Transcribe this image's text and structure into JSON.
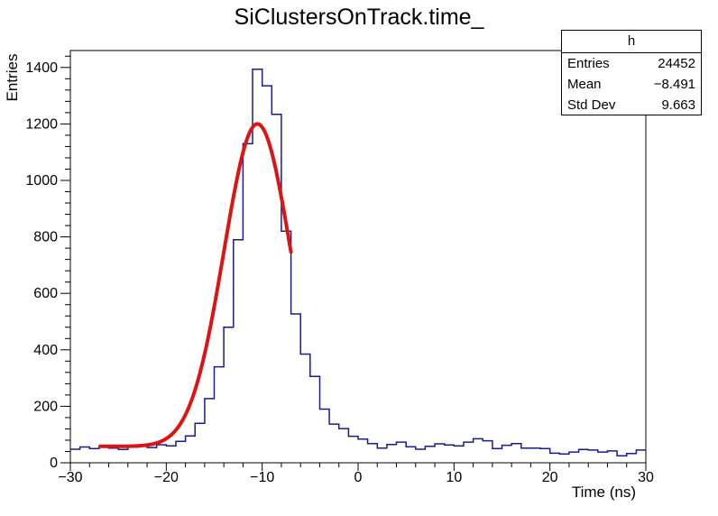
{
  "title": "SiClustersOnTrack.time_",
  "stats_box": {
    "header": "h",
    "rows": [
      {
        "label": "Entries",
        "value": "24452"
      },
      {
        "label": "Mean",
        "value": "−8.491"
      },
      {
        "label": "Std Dev",
        "value": "9.663"
      }
    ]
  },
  "chart_data": {
    "type": "bar",
    "subtype": "root-histogram-step",
    "title": "SiClustersOnTrack.time_",
    "xlabel": "Time (ns)",
    "ylabel": "Entries",
    "xlim": [
      -30,
      30
    ],
    "ylim": [
      0,
      1460
    ],
    "grid": false,
    "bin_start": -30,
    "bin_width": 1,
    "bins": [
      48,
      56,
      50,
      58,
      52,
      47,
      55,
      61,
      54,
      64,
      60,
      76,
      95,
      140,
      227,
      340,
      480,
      790,
      1130,
      1394,
      1335,
      1234,
      820,
      527,
      385,
      306,
      190,
      137,
      121,
      94,
      84,
      68,
      52,
      65,
      73,
      57,
      48,
      58,
      67,
      63,
      60,
      73,
      85,
      78,
      50,
      62,
      68,
      52,
      52,
      50,
      34,
      31,
      38,
      47,
      45,
      38,
      42,
      25,
      33,
      45
    ],
    "x_major_ticks": [
      -30,
      -20,
      -10,
      0,
      10,
      20,
      30
    ],
    "x_tick_labels": [
      "−30",
      "−20",
      "−10",
      "0",
      "10",
      "20",
      "30"
    ],
    "x_minor_step": 2,
    "y_major_ticks": [
      0,
      200,
      400,
      600,
      800,
      1000,
      1200,
      1400
    ],
    "y_tick_labels": [
      "0",
      "200",
      "400",
      "600",
      "800",
      "1000",
      "1200",
      "1400"
    ],
    "y_minor_step": 40,
    "fit": {
      "type": "gaussian_plus_constant",
      "amplitude": 1142,
      "mean": -10.5,
      "sigma": 3.48,
      "constant": 58,
      "range": [
        -26.9,
        -7.0
      ]
    },
    "colors": {
      "histogram": "#1a1a94",
      "fit": "#dc1414",
      "axis": "#000000",
      "background": "#ffffff"
    }
  }
}
